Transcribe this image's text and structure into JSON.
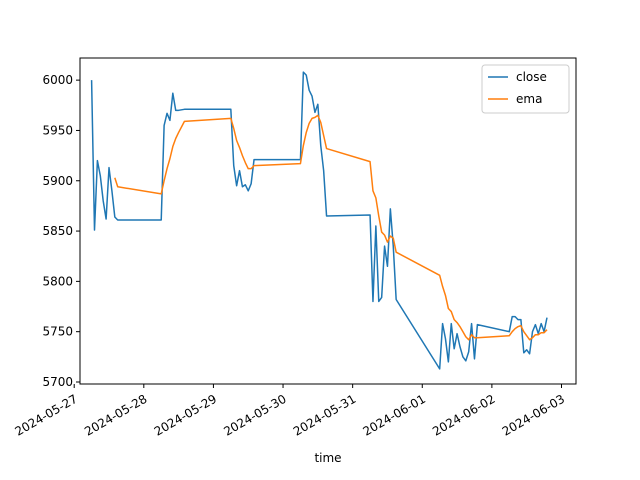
{
  "chart_data": {
    "type": "line",
    "title": "",
    "xlabel": "time",
    "ylabel": "",
    "xlim": [
      "2024-05-27T02:00",
      "2024-06-03T05:00"
    ],
    "ylim": [
      5698,
      6022
    ],
    "x_ticks": [
      "2024-05-27",
      "2024-05-28",
      "2024-05-29",
      "2024-05-30",
      "2024-05-31",
      "2024-06-01",
      "2024-06-02",
      "2024-06-03"
    ],
    "y_ticks": [
      5700,
      5750,
      5800,
      5850,
      5900,
      5950,
      6000
    ],
    "legend": {
      "placement": "top-right",
      "entries": [
        "close",
        "ema"
      ]
    },
    "grid": false,
    "series": [
      {
        "name": "close",
        "color": "#1f77b4",
        "points": [
          [
            "2024-05-27T06:00",
            6000
          ],
          [
            "2024-05-27T07:00",
            5851
          ],
          [
            "2024-05-27T08:00",
            5920
          ],
          [
            "2024-05-27T09:00",
            5905
          ],
          [
            "2024-05-27T10:00",
            5880
          ],
          [
            "2024-05-27T11:00",
            5862
          ],
          [
            "2024-05-27T12:00",
            5913
          ],
          [
            "2024-05-27T13:00",
            5890
          ],
          [
            "2024-05-27T14:00",
            5864
          ],
          [
            "2024-05-27T15:00",
            5861
          ],
          [
            "2024-05-28T06:00",
            5861
          ],
          [
            "2024-05-28T07:00",
            5955
          ],
          [
            "2024-05-28T08:00",
            5967
          ],
          [
            "2024-05-28T09:00",
            5960
          ],
          [
            "2024-05-28T10:00",
            5987
          ],
          [
            "2024-05-28T11:00",
            5970
          ],
          [
            "2024-05-28T12:00",
            5970
          ],
          [
            "2024-05-28T14:00",
            5971
          ],
          [
            "2024-05-29T06:00",
            5971
          ],
          [
            "2024-05-29T07:00",
            5915
          ],
          [
            "2024-05-29T08:00",
            5895
          ],
          [
            "2024-05-29T09:00",
            5910
          ],
          [
            "2024-05-29T10:00",
            5894
          ],
          [
            "2024-05-29T11:00",
            5896
          ],
          [
            "2024-05-29T12:00",
            5890
          ],
          [
            "2024-05-29T13:00",
            5897
          ],
          [
            "2024-05-29T14:00",
            5921
          ],
          [
            "2024-05-30T06:00",
            5921
          ],
          [
            "2024-05-30T07:00",
            6008
          ],
          [
            "2024-05-30T08:00",
            6005
          ],
          [
            "2024-05-30T09:00",
            5990
          ],
          [
            "2024-05-30T10:00",
            5984
          ],
          [
            "2024-05-30T11:00",
            5968
          ],
          [
            "2024-05-30T12:00",
            5976
          ],
          [
            "2024-05-30T13:00",
            5935
          ],
          [
            "2024-05-30T14:00",
            5910
          ],
          [
            "2024-05-30T15:00",
            5865
          ],
          [
            "2024-05-31T06:00",
            5866
          ],
          [
            "2024-05-31T07:00",
            5780
          ],
          [
            "2024-05-31T08:00",
            5855
          ],
          [
            "2024-05-31T09:00",
            5780
          ],
          [
            "2024-05-31T10:00",
            5784
          ],
          [
            "2024-05-31T11:00",
            5835
          ],
          [
            "2024-05-31T12:00",
            5815
          ],
          [
            "2024-05-31T13:00",
            5872
          ],
          [
            "2024-05-31T14:00",
            5835
          ],
          [
            "2024-05-31T15:00",
            5782
          ],
          [
            "2024-06-01T06:00",
            5713
          ],
          [
            "2024-06-01T07:00",
            5758
          ],
          [
            "2024-06-01T08:00",
            5743
          ],
          [
            "2024-06-01T09:00",
            5720
          ],
          [
            "2024-06-01T10:00",
            5758
          ],
          [
            "2024-06-01T11:00",
            5733
          ],
          [
            "2024-06-01T12:00",
            5748
          ],
          [
            "2024-06-01T13:00",
            5735
          ],
          [
            "2024-06-01T14:00",
            5725
          ],
          [
            "2024-06-01T15:00",
            5721
          ],
          [
            "2024-06-01T16:00",
            5730
          ],
          [
            "2024-06-01T17:00",
            5758
          ],
          [
            "2024-06-01T18:00",
            5723
          ],
          [
            "2024-06-01T19:00",
            5757
          ],
          [
            "2024-06-02T06:00",
            5750
          ],
          [
            "2024-06-02T07:00",
            5765
          ],
          [
            "2024-06-02T08:00",
            5765
          ],
          [
            "2024-06-02T09:00",
            5762
          ],
          [
            "2024-06-02T10:00",
            5762
          ],
          [
            "2024-06-02T11:00",
            5729
          ],
          [
            "2024-06-02T12:00",
            5732
          ],
          [
            "2024-06-02T13:00",
            5728
          ],
          [
            "2024-06-02T14:00",
            5750
          ],
          [
            "2024-06-02T15:00",
            5757
          ],
          [
            "2024-06-02T16:00",
            5748
          ],
          [
            "2024-06-02T17:00",
            5758
          ],
          [
            "2024-06-02T18:00",
            5750
          ],
          [
            "2024-06-02T19:00",
            5764
          ]
        ]
      },
      {
        "name": "ema",
        "color": "#ff7f0e",
        "points": [
          [
            "2024-05-27T14:00",
            5903
          ],
          [
            "2024-05-27T15:00",
            5894
          ],
          [
            "2024-05-28T06:00",
            5887
          ],
          [
            "2024-05-28T07:00",
            5900
          ],
          [
            "2024-05-28T08:00",
            5912
          ],
          [
            "2024-05-28T09:00",
            5922
          ],
          [
            "2024-05-28T10:00",
            5934
          ],
          [
            "2024-05-28T11:00",
            5942
          ],
          [
            "2024-05-28T12:00",
            5948
          ],
          [
            "2024-05-28T14:00",
            5959
          ],
          [
            "2024-05-29T06:00",
            5962
          ],
          [
            "2024-05-29T07:00",
            5952
          ],
          [
            "2024-05-29T08:00",
            5940
          ],
          [
            "2024-05-29T09:00",
            5933
          ],
          [
            "2024-05-29T10:00",
            5925
          ],
          [
            "2024-05-29T11:00",
            5918
          ],
          [
            "2024-05-29T12:00",
            5912
          ],
          [
            "2024-05-29T13:00",
            5912
          ],
          [
            "2024-05-29T14:00",
            5915
          ],
          [
            "2024-05-30T06:00",
            5917
          ],
          [
            "2024-05-30T07:00",
            5935
          ],
          [
            "2024-05-30T08:00",
            5948
          ],
          [
            "2024-05-30T09:00",
            5957
          ],
          [
            "2024-05-30T10:00",
            5962
          ],
          [
            "2024-05-30T11:00",
            5963
          ],
          [
            "2024-05-30T12:00",
            5965
          ],
          [
            "2024-05-30T13:00",
            5958
          ],
          [
            "2024-05-30T14:00",
            5945
          ],
          [
            "2024-05-30T15:00",
            5932
          ],
          [
            "2024-05-31T06:00",
            5919
          ],
          [
            "2024-05-31T07:00",
            5890
          ],
          [
            "2024-05-31T08:00",
            5883
          ],
          [
            "2024-05-31T09:00",
            5865
          ],
          [
            "2024-05-31T10:00",
            5849
          ],
          [
            "2024-05-31T11:00",
            5846
          ],
          [
            "2024-05-31T12:00",
            5839
          ],
          [
            "2024-05-31T13:00",
            5845
          ],
          [
            "2024-05-31T14:00",
            5843
          ],
          [
            "2024-05-31T15:00",
            5829
          ],
          [
            "2024-06-01T06:00",
            5806
          ],
          [
            "2024-06-01T07:00",
            5795
          ],
          [
            "2024-06-01T08:00",
            5786
          ],
          [
            "2024-06-01T09:00",
            5773
          ],
          [
            "2024-06-01T10:00",
            5770
          ],
          [
            "2024-06-01T11:00",
            5762
          ],
          [
            "2024-06-01T12:00",
            5759
          ],
          [
            "2024-06-01T13:00",
            5755
          ],
          [
            "2024-06-01T14:00",
            5750
          ],
          [
            "2024-06-01T15:00",
            5745
          ],
          [
            "2024-06-01T16:00",
            5742
          ],
          [
            "2024-06-01T17:00",
            5747
          ],
          [
            "2024-06-01T18:00",
            5744
          ],
          [
            "2024-06-01T19:00",
            5744
          ],
          [
            "2024-06-02T06:00",
            5746
          ],
          [
            "2024-06-02T07:00",
            5750
          ],
          [
            "2024-06-02T08:00",
            5753
          ],
          [
            "2024-06-02T09:00",
            5755
          ],
          [
            "2024-06-02T10:00",
            5756
          ],
          [
            "2024-06-02T11:00",
            5750
          ],
          [
            "2024-06-02T12:00",
            5746
          ],
          [
            "2024-06-02T13:00",
            5742
          ],
          [
            "2024-06-02T14:00",
            5744
          ],
          [
            "2024-06-02T15:00",
            5747
          ],
          [
            "2024-06-02T16:00",
            5747
          ],
          [
            "2024-06-02T17:00",
            5749
          ],
          [
            "2024-06-02T18:00",
            5749
          ],
          [
            "2024-06-02T19:00",
            5752
          ]
        ]
      }
    ]
  }
}
